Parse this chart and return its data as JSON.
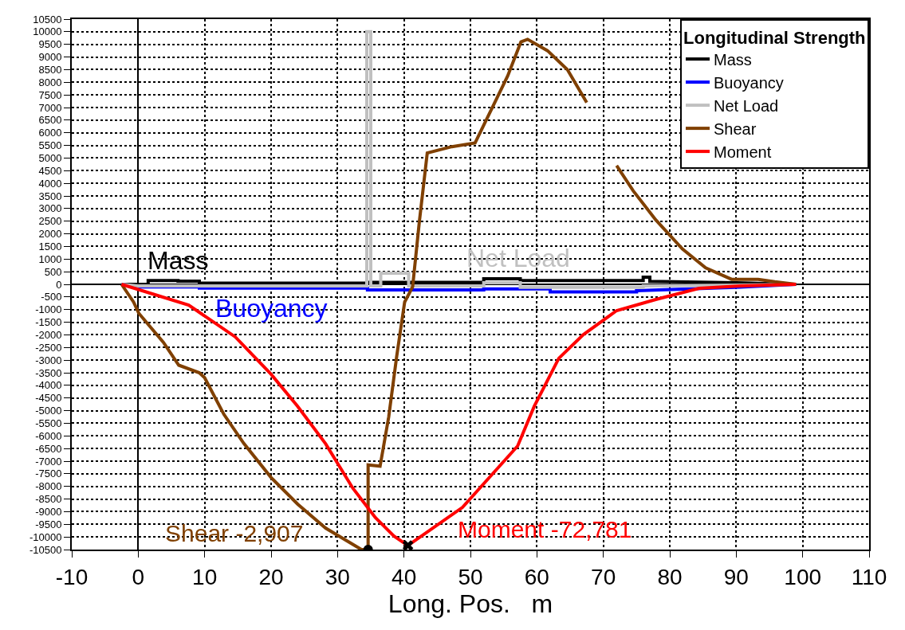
{
  "chart_data": {
    "type": "line",
    "xlabel": "Long. Pos.   m",
    "legend_title": "Longitudinal Strength",
    "legend": "top right",
    "grid": true,
    "line_style": "solid",
    "marker": "none",
    "xlim": [
      -10,
      110
    ],
    "xticks": [
      -10,
      0,
      10,
      20,
      30,
      40,
      50,
      60,
      70,
      80,
      90,
      100,
      110
    ],
    "ylim": [
      -10500,
      10500
    ],
    "yticks": [
      10500,
      10000,
      9500,
      9000,
      8500,
      8000,
      7500,
      7000,
      6500,
      6000,
      5500,
      5000,
      4500,
      4000,
      3500,
      3000,
      2500,
      2000,
      1500,
      1000,
      500,
      0,
      -500,
      -1000,
      -1500,
      -2000,
      -2500,
      -3000,
      -3500,
      -4000,
      -4500,
      -5000,
      -5500,
      -6000,
      -6500,
      -7000,
      -7500,
      -8000,
      -8500,
      -9000,
      -9500,
      -10000,
      -10500
    ],
    "series": [
      {
        "name": "Mass",
        "color": "#000000",
        "x": [
          -2.5,
          1.5,
          1.5,
          6,
          6,
          9.2,
          9.2,
          34.5,
          34.5,
          52,
          52,
          57.5,
          57.5,
          76,
          76,
          77,
          77,
          90,
          99
        ],
        "values": [
          0,
          0,
          150,
          150,
          130,
          130,
          50,
          50,
          80,
          80,
          220,
          220,
          150,
          150,
          280,
          280,
          120,
          60,
          0
        ]
      },
      {
        "name": "Buoyancy",
        "color": "#0000ff",
        "x": [
          -2.5,
          0,
          9.2,
          9.2,
          34.5,
          34.5,
          52,
          52,
          62,
          62,
          75,
          75,
          90,
          99
        ],
        "values": [
          0,
          -100,
          -100,
          -150,
          -150,
          -220,
          -220,
          -180,
          -180,
          -300,
          -300,
          -250,
          -120,
          0
        ]
      },
      {
        "name": "Net Load",
        "color": "#c0c0c0",
        "x": [
          -2.5,
          0,
          34.4,
          34.4,
          35,
          35,
          36.5,
          36.5,
          40.7,
          40.7,
          52,
          52,
          57.5,
          57.5,
          76,
          76,
          90,
          99
        ],
        "values": [
          0,
          -60,
          -60,
          10000,
          10000,
          -60,
          -60,
          440,
          440,
          -60,
          -60,
          60,
          60,
          -120,
          -120,
          -60,
          -30,
          0
        ]
      },
      {
        "name": "Shear",
        "color": "#804000",
        "x": [
          -2.5,
          -0.7,
          0.1,
          3.8,
          6.1,
          9.2,
          10,
          12.9,
          15.9,
          20,
          24,
          28.2,
          33.6,
          34.6,
          34.6,
          36.4,
          37.7,
          38.9,
          40.1,
          41.3,
          42.3,
          43.5,
          47.2,
          50.7,
          53.2,
          55.6,
          57.6,
          58.6,
          61.6,
          64.6,
          67.5,
          70,
          72,
          74.5,
          77.9,
          81.9,
          85.4,
          89.3,
          93.3,
          95.8,
          99
        ],
        "values": [
          0,
          -700,
          -1150,
          -2300,
          -3200,
          -3500,
          -3700,
          -5150,
          -6300,
          -7650,
          -8700,
          -9650,
          -10500,
          -10500,
          -7150,
          -7200,
          -5250,
          -2850,
          -700,
          -100,
          2450,
          5200,
          5450,
          5600,
          6950,
          8250,
          9600,
          9700,
          9250,
          8500,
          7200,
          null,
          4700,
          3700,
          2550,
          1400,
          650,
          200,
          200,
          100,
          0
        ]
      },
      {
        "name": "Moment",
        "color": "#ff0000",
        "x": [
          -2.5,
          7.6,
          14.6,
          20,
          24,
          28.2,
          32.3,
          35.7,
          38.5,
          40.6,
          48.8,
          57.1,
          59.6,
          63.3,
          67,
          72,
          77.9,
          84.4,
          90.6,
          99
        ],
        "values": [
          0,
          -820,
          -2080,
          -3560,
          -4830,
          -6310,
          -8070,
          -9240,
          -9970,
          -10340,
          -8830,
          -6400,
          -4830,
          -2930,
          -1990,
          -1040,
          -600,
          -160,
          -60,
          0
        ]
      },
      {
        "type": "scatter",
        "color": "#000000",
        "marker": "circle",
        "x": [
          34.6
        ],
        "values": [
          -10500
        ]
      },
      {
        "type": "scatter",
        "color": "#000000",
        "marker": "cross",
        "x": [
          40.6
        ],
        "values": [
          -10340
        ]
      }
    ],
    "annotations": [
      {
        "text": "Mass",
        "x": 6,
        "y": 300
      },
      {
        "text": "Buoyancy",
        "x": 20,
        "y": -300
      },
      "Net Load",
      {
        "text": "Shear -2,907",
        "x": 34.6,
        "y": -10500
      },
      {
        "text": "Moment -72,781",
        "x": 40.6,
        "y": -10340
      }
    ]
  }
}
